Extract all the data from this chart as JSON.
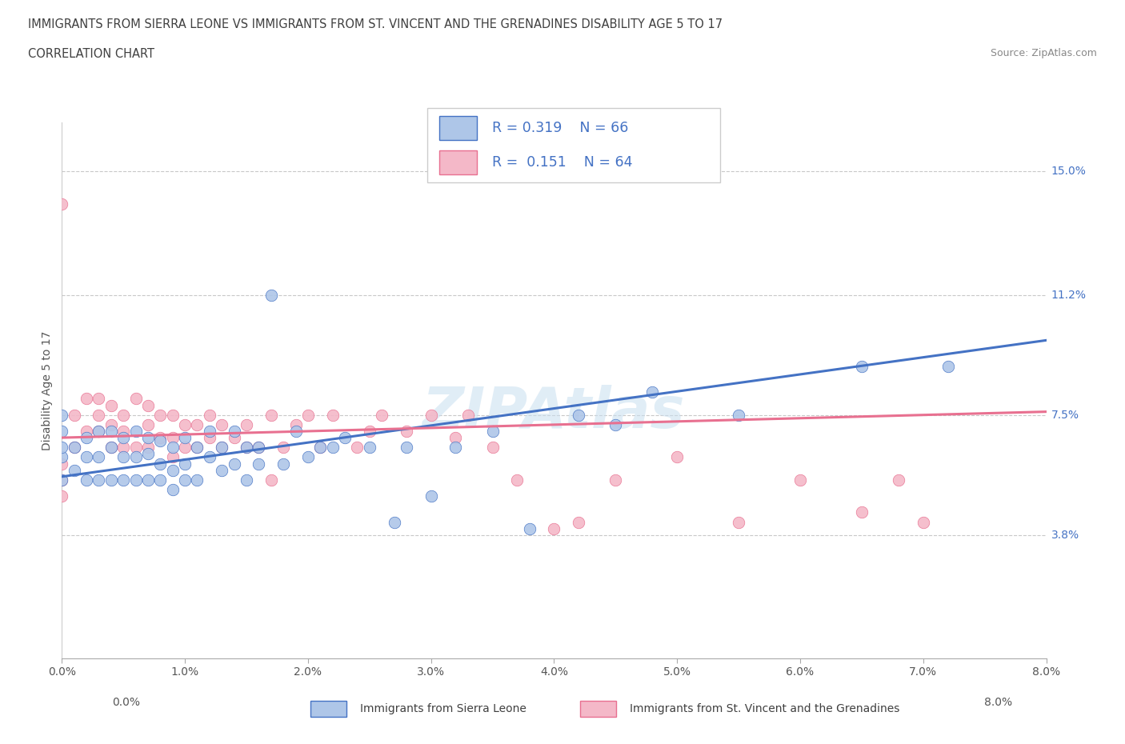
{
  "title_line1": "IMMIGRANTS FROM SIERRA LEONE VS IMMIGRANTS FROM ST. VINCENT AND THE GRENADINES DISABILITY AGE 5 TO 17",
  "title_line2": "CORRELATION CHART",
  "source_text": "Source: ZipAtlas.com",
  "ylabel": "Disability Age 5 to 17",
  "xlim": [
    0.0,
    0.08
  ],
  "ylim": [
    0.0,
    0.165
  ],
  "xtick_positions": [
    0.0,
    0.01,
    0.02,
    0.03,
    0.04,
    0.05,
    0.06,
    0.07,
    0.08
  ],
  "xtick_labels": [
    "0.0%",
    "1.0%",
    "2.0%",
    "3.0%",
    "4.0%",
    "5.0%",
    "6.0%",
    "7.0%",
    "8.0%"
  ],
  "ytick_positions": [
    0.038,
    0.075,
    0.112,
    0.15
  ],
  "ytick_labels": [
    "3.8%",
    "7.5%",
    "11.2%",
    "15.0%"
  ],
  "color_blue": "#aec6e8",
  "color_pink": "#f4b8c8",
  "color_line_blue": "#4472c4",
  "color_line_pink": "#e87090",
  "color_text_blue": "#4472c4",
  "color_title": "#404040",
  "R_blue": 0.319,
  "N_blue": 66,
  "R_pink": 0.151,
  "N_pink": 64,
  "legend_label_blue": "Immigrants from Sierra Leone",
  "legend_label_pink": "Immigrants from St. Vincent and the Grenadines",
  "watermark": "ZIPAtlas",
  "blue_scatter_x": [
    0.0,
    0.0,
    0.0,
    0.0,
    0.0,
    0.001,
    0.001,
    0.002,
    0.002,
    0.002,
    0.003,
    0.003,
    0.003,
    0.004,
    0.004,
    0.004,
    0.005,
    0.005,
    0.005,
    0.006,
    0.006,
    0.006,
    0.007,
    0.007,
    0.007,
    0.008,
    0.008,
    0.008,
    0.009,
    0.009,
    0.009,
    0.01,
    0.01,
    0.01,
    0.011,
    0.011,
    0.012,
    0.012,
    0.013,
    0.013,
    0.014,
    0.014,
    0.015,
    0.015,
    0.016,
    0.016,
    0.017,
    0.018,
    0.019,
    0.02,
    0.021,
    0.022,
    0.023,
    0.025,
    0.027,
    0.028,
    0.03,
    0.032,
    0.035,
    0.038,
    0.042,
    0.045,
    0.048,
    0.055,
    0.065,
    0.072
  ],
  "blue_scatter_y": [
    0.055,
    0.062,
    0.065,
    0.07,
    0.075,
    0.058,
    0.065,
    0.055,
    0.062,
    0.068,
    0.055,
    0.062,
    0.07,
    0.055,
    0.065,
    0.07,
    0.055,
    0.062,
    0.068,
    0.055,
    0.062,
    0.07,
    0.055,
    0.063,
    0.068,
    0.055,
    0.06,
    0.067,
    0.052,
    0.058,
    0.065,
    0.055,
    0.06,
    0.068,
    0.055,
    0.065,
    0.062,
    0.07,
    0.058,
    0.065,
    0.06,
    0.07,
    0.055,
    0.065,
    0.06,
    0.065,
    0.112,
    0.06,
    0.07,
    0.062,
    0.065,
    0.065,
    0.068,
    0.065,
    0.042,
    0.065,
    0.05,
    0.065,
    0.07,
    0.04,
    0.075,
    0.072,
    0.082,
    0.075,
    0.09,
    0.09
  ],
  "pink_scatter_x": [
    0.0,
    0.0,
    0.0,
    0.0,
    0.001,
    0.001,
    0.002,
    0.002,
    0.003,
    0.003,
    0.003,
    0.004,
    0.004,
    0.004,
    0.005,
    0.005,
    0.005,
    0.006,
    0.006,
    0.007,
    0.007,
    0.007,
    0.008,
    0.008,
    0.009,
    0.009,
    0.009,
    0.01,
    0.01,
    0.011,
    0.011,
    0.012,
    0.012,
    0.013,
    0.013,
    0.014,
    0.015,
    0.015,
    0.016,
    0.017,
    0.017,
    0.018,
    0.019,
    0.02,
    0.021,
    0.022,
    0.024,
    0.025,
    0.026,
    0.028,
    0.03,
    0.032,
    0.033,
    0.035,
    0.037,
    0.04,
    0.042,
    0.045,
    0.05,
    0.055,
    0.06,
    0.065,
    0.068,
    0.07
  ],
  "pink_scatter_y": [
    0.14,
    0.05,
    0.055,
    0.06,
    0.075,
    0.065,
    0.07,
    0.08,
    0.07,
    0.075,
    0.08,
    0.065,
    0.072,
    0.078,
    0.065,
    0.07,
    0.075,
    0.065,
    0.08,
    0.065,
    0.072,
    0.078,
    0.068,
    0.075,
    0.062,
    0.068,
    0.075,
    0.065,
    0.072,
    0.065,
    0.072,
    0.068,
    0.075,
    0.065,
    0.072,
    0.068,
    0.065,
    0.072,
    0.065,
    0.075,
    0.055,
    0.065,
    0.072,
    0.075,
    0.065,
    0.075,
    0.065,
    0.07,
    0.075,
    0.07,
    0.075,
    0.068,
    0.075,
    0.065,
    0.055,
    0.04,
    0.042,
    0.055,
    0.062,
    0.042,
    0.055,
    0.045,
    0.055,
    0.042
  ],
  "trend_blue_x0": 0.0,
  "trend_blue_y0": 0.056,
  "trend_blue_x1": 0.08,
  "trend_blue_y1": 0.098,
  "trend_pink_x0": 0.0,
  "trend_pink_y0": 0.068,
  "trend_pink_x1": 0.08,
  "trend_pink_y1": 0.076
}
